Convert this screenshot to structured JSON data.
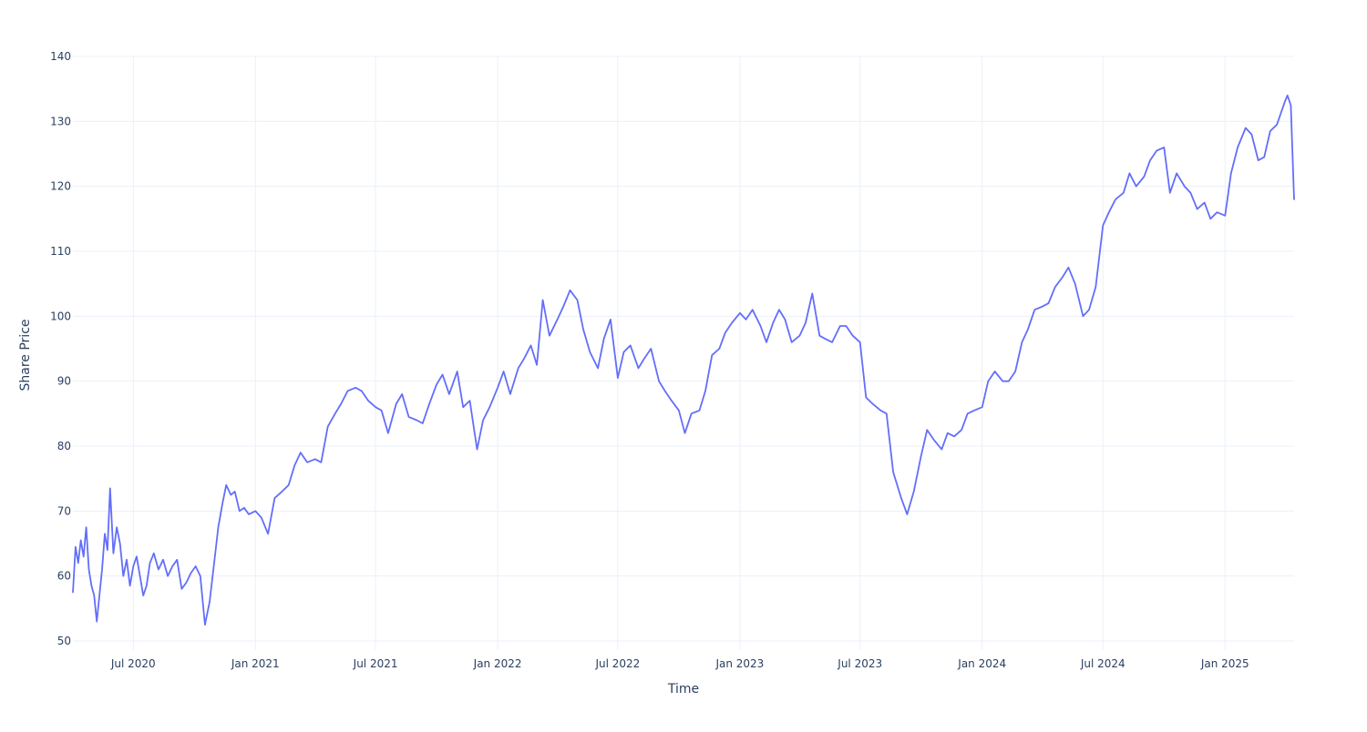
{
  "chart_data": {
    "type": "line",
    "title": "",
    "xlabel": "Time",
    "ylabel": "Share Price",
    "xlim": [
      "2020-04-01",
      "2025-04-15"
    ],
    "ylim": [
      48.6,
      140
    ],
    "grid": true,
    "legend": "none",
    "colors": {
      "line": "#636efa",
      "grid": "#ebf0f8",
      "text": "#2a3f5f",
      "background": "#ffffff"
    },
    "x_ticks": [
      {
        "date": "2020-07-01",
        "label": "Jul 2020"
      },
      {
        "date": "2021-01-01",
        "label": "Jan 2021"
      },
      {
        "date": "2021-07-01",
        "label": "Jul 2021"
      },
      {
        "date": "2022-01-01",
        "label": "Jan 2022"
      },
      {
        "date": "2022-07-01",
        "label": "Jul 2022"
      },
      {
        "date": "2023-01-01",
        "label": "Jan 2023"
      },
      {
        "date": "2023-07-01",
        "label": "Jul 2023"
      },
      {
        "date": "2024-01-01",
        "label": "Jan 2024"
      },
      {
        "date": "2024-07-01",
        "label": "Jul 2024"
      },
      {
        "date": "2025-01-01",
        "label": "Jan 2025"
      }
    ],
    "y_ticks": [
      {
        "value": 50,
        "label": "50"
      },
      {
        "value": 60,
        "label": "60"
      },
      {
        "value": 70,
        "label": "70"
      },
      {
        "value": 80,
        "label": "80"
      },
      {
        "value": 90,
        "label": "90"
      },
      {
        "value": 100,
        "label": "100"
      },
      {
        "value": 110,
        "label": "110"
      },
      {
        "value": 120,
        "label": "120"
      },
      {
        "value": 130,
        "label": "130"
      },
      {
        "value": 140,
        "label": "140"
      }
    ],
    "series": [
      {
        "x": [
          "2020-04-01",
          "2020-04-05",
          "2020-04-09",
          "2020-04-13",
          "2020-04-17",
          "2020-04-21",
          "2020-04-25",
          "2020-04-29",
          "2020-05-03",
          "2020-05-07",
          "2020-05-11",
          "2020-05-15",
          "2020-05-19",
          "2020-05-23",
          "2020-05-27",
          "2020-06-01",
          "2020-06-06",
          "2020-06-11",
          "2020-06-16",
          "2020-06-21",
          "2020-06-26",
          "2020-07-01",
          "2020-07-06",
          "2020-07-11",
          "2020-07-16",
          "2020-07-21",
          "2020-07-26",
          "2020-08-01",
          "2020-08-08",
          "2020-08-15",
          "2020-08-22",
          "2020-08-29",
          "2020-09-05",
          "2020-09-12",
          "2020-09-19",
          "2020-09-26",
          "2020-10-03",
          "2020-10-10",
          "2020-10-17",
          "2020-10-24",
          "2020-11-01",
          "2020-11-06",
          "2020-11-12",
          "2020-11-18",
          "2020-11-25",
          "2020-12-01",
          "2020-12-08",
          "2020-12-15",
          "2020-12-22",
          "2021-01-01",
          "2021-01-10",
          "2021-01-20",
          "2021-01-30",
          "2021-02-10",
          "2021-02-20",
          "2021-03-01",
          "2021-03-10",
          "2021-03-20",
          "2021-04-01",
          "2021-04-10",
          "2021-04-20",
          "2021-05-01",
          "2021-05-10",
          "2021-05-20",
          "2021-06-01",
          "2021-06-10",
          "2021-06-20",
          "2021-07-01",
          "2021-07-10",
          "2021-07-20",
          "2021-08-01",
          "2021-08-10",
          "2021-08-20",
          "2021-09-01",
          "2021-09-10",
          "2021-09-20",
          "2021-10-01",
          "2021-10-10",
          "2021-10-20",
          "2021-11-01",
          "2021-11-10",
          "2021-11-20",
          "2021-12-01",
          "2021-12-10",
          "2021-12-20",
          "2022-01-01",
          "2022-01-10",
          "2022-01-20",
          "2022-02-01",
          "2022-02-10",
          "2022-02-20",
          "2022-03-01",
          "2022-03-10",
          "2022-03-20",
          "2022-04-01",
          "2022-04-10",
          "2022-04-20",
          "2022-05-01",
          "2022-05-10",
          "2022-05-20",
          "2022-06-01",
          "2022-06-10",
          "2022-06-20",
          "2022-07-01",
          "2022-07-10",
          "2022-07-20",
          "2022-08-01",
          "2022-08-10",
          "2022-08-20",
          "2022-09-01",
          "2022-09-10",
          "2022-09-20",
          "2022-10-01",
          "2022-10-10",
          "2022-10-20",
          "2022-11-01",
          "2022-11-10",
          "2022-11-20",
          "2022-12-01",
          "2022-12-10",
          "2022-12-20",
          "2023-01-01",
          "2023-01-10",
          "2023-01-20",
          "2023-02-01",
          "2023-02-10",
          "2023-02-20",
          "2023-03-01",
          "2023-03-10",
          "2023-03-20",
          "2023-04-01",
          "2023-04-10",
          "2023-04-20",
          "2023-05-01",
          "2023-05-10",
          "2023-05-20",
          "2023-06-01",
          "2023-06-10",
          "2023-06-20",
          "2023-07-01",
          "2023-07-10",
          "2023-07-20",
          "2023-08-01",
          "2023-08-10",
          "2023-08-20",
          "2023-09-01",
          "2023-09-10",
          "2023-09-20",
          "2023-10-01",
          "2023-10-10",
          "2023-10-20",
          "2023-11-01",
          "2023-11-10",
          "2023-11-20",
          "2023-12-01",
          "2023-12-10",
          "2023-12-20",
          "2024-01-01",
          "2024-01-10",
          "2024-01-20",
          "2024-02-01",
          "2024-02-10",
          "2024-02-20",
          "2024-03-01",
          "2024-03-10",
          "2024-03-20",
          "2024-04-01",
          "2024-04-10",
          "2024-04-20",
          "2024-05-01",
          "2024-05-10",
          "2024-05-20",
          "2024-06-01",
          "2024-06-10",
          "2024-06-20",
          "2024-07-01",
          "2024-07-10",
          "2024-07-20",
          "2024-08-01",
          "2024-08-10",
          "2024-08-20",
          "2024-09-01",
          "2024-09-10",
          "2024-09-20",
          "2024-10-01",
          "2024-10-10",
          "2024-10-20",
          "2024-11-01",
          "2024-11-10",
          "2024-11-20",
          "2024-12-01",
          "2024-12-10",
          "2024-12-20",
          "2025-01-01",
          "2025-01-10",
          "2025-01-20",
          "2025-02-01",
          "2025-02-10",
          "2025-02-20",
          "2025-03-01",
          "2025-03-10",
          "2025-03-20",
          "2025-04-01",
          "2025-04-05",
          "2025-04-10",
          "2025-04-15"
        ],
        "y": [
          57.5,
          64.5,
          62.0,
          65.5,
          63.0,
          67.5,
          61.0,
          58.5,
          57.0,
          53.0,
          57.0,
          61.0,
          66.5,
          64.0,
          73.5,
          63.5,
          67.5,
          65.0,
          60.0,
          62.5,
          58.5,
          61.5,
          63.0,
          60.0,
          57.0,
          58.5,
          62.0,
          63.5,
          61.0,
          62.5,
          60.0,
          61.5,
          62.5,
          58.0,
          59.0,
          60.5,
          61.5,
          60.0,
          52.5,
          56.0,
          63.0,
          67.5,
          71.0,
          74.0,
          72.5,
          73.0,
          70.0,
          70.5,
          69.5,
          70.0,
          69.0,
          66.5,
          72.0,
          73.0,
          74.0,
          77.0,
          79.0,
          77.5,
          78.0,
          77.5,
          83.0,
          85.0,
          86.5,
          88.5,
          89.0,
          88.5,
          87.0,
          86.0,
          85.5,
          82.0,
          86.5,
          88.0,
          84.5,
          84.0,
          83.5,
          86.5,
          89.5,
          91.0,
          88.0,
          91.5,
          86.0,
          87.0,
          79.5,
          84.0,
          86.0,
          89.0,
          91.5,
          88.0,
          92.0,
          93.5,
          95.5,
          92.5,
          102.5,
          97.0,
          99.5,
          101.5,
          104.0,
          102.5,
          98.0,
          94.5,
          92.0,
          96.5,
          99.5,
          90.5,
          94.5,
          95.5,
          92.0,
          93.5,
          95.0,
          90.0,
          88.5,
          87.0,
          85.5,
          82.0,
          85.0,
          85.5,
          88.5,
          94.0,
          95.0,
          97.5,
          99.0,
          100.5,
          99.5,
          101.0,
          98.5,
          96.0,
          99.0,
          101.0,
          99.5,
          96.0,
          97.0,
          99.0,
          103.5,
          97.0,
          96.5,
          96.0,
          98.5,
          98.5,
          97.0,
          96.0,
          87.5,
          86.5,
          85.5,
          85.0,
          76.0,
          72.0,
          69.5,
          73.0,
          78.5,
          82.5,
          81.0,
          79.5,
          82.0,
          81.5,
          82.5,
          85.0,
          85.5,
          86.0,
          90.0,
          91.5,
          90.0,
          90.0,
          91.5,
          96.0,
          98.0,
          101.0,
          101.5,
          102.0,
          104.5,
          106.0,
          107.5,
          105.0,
          100.0,
          101.0,
          104.5,
          114.0,
          116.0,
          118.0,
          119.0,
          122.0,
          120.0,
          121.5,
          124.0,
          125.5,
          126.0,
          119.0,
          122.0,
          120.0,
          119.0,
          116.5,
          117.5,
          115.0,
          116.0,
          115.5,
          122.0,
          126.0,
          129.0,
          128.0,
          124.0,
          124.5,
          128.5,
          129.5,
          133.0,
          134.0,
          132.5,
          118.0
        ]
      }
    ]
  }
}
